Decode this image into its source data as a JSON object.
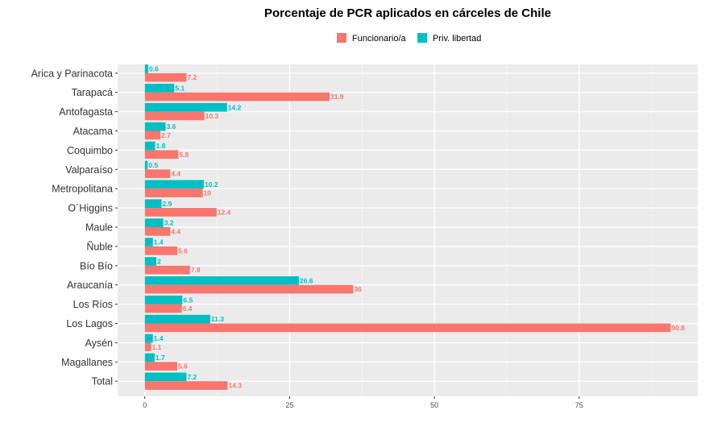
{
  "chart_data": {
    "type": "bar",
    "orientation": "horizontal",
    "title": "Porcentaje de PCR aplicados en cárceles de Chile",
    "xlabel": "",
    "ylabel": "",
    "xlim": [
      0,
      95
    ],
    "xticks": [
      0,
      25,
      50,
      75
    ],
    "grid": true,
    "legend_position": "top",
    "categories": [
      "Arica y Parinacota",
      "Tarapacá",
      "Antofagasta",
      "Atacama",
      "Coquimbo",
      "Valparaíso",
      "Metropolitana",
      "O´Higgins",
      "Maule",
      "Ñuble",
      "Bío Bío",
      "Araucanía",
      "Los Ríos",
      "Los Lagos",
      "Aysén",
      "Magallanes",
      "Total"
    ],
    "series": [
      {
        "name": "Funcionario/a",
        "color": "#F8766D",
        "values": [
          7.2,
          31.9,
          10.3,
          2.7,
          5.8,
          4.4,
          10,
          12.4,
          4.4,
          5.6,
          7.8,
          36,
          6.4,
          90.8,
          1.1,
          5.6,
          14.3
        ],
        "labels": [
          "7.2",
          "31.9",
          "10.3",
          "2.7",
          "5.8",
          "4.4",
          "10",
          "12.4",
          "4.4",
          "5.6",
          "7.8",
          "36",
          "6.4",
          "90.8",
          "1.1",
          "5.6",
          "14.3"
        ]
      },
      {
        "name": "Priv. libertad",
        "color": "#00BFC4",
        "values": [
          0.6,
          5.1,
          14.2,
          3.6,
          1.8,
          0.5,
          10.2,
          2.9,
          3.2,
          1.4,
          2,
          26.6,
          6.5,
          11.3,
          1.4,
          1.7,
          7.2
        ],
        "labels": [
          "0.6",
          "5.1",
          "14.2",
          "3.6",
          "1.8",
          "0.5",
          "10.2",
          "2.9",
          "3.2",
          "1.4",
          "2",
          "26.6",
          "6.5",
          "11.3",
          "1.4",
          "1.7",
          "7.2"
        ]
      }
    ]
  }
}
